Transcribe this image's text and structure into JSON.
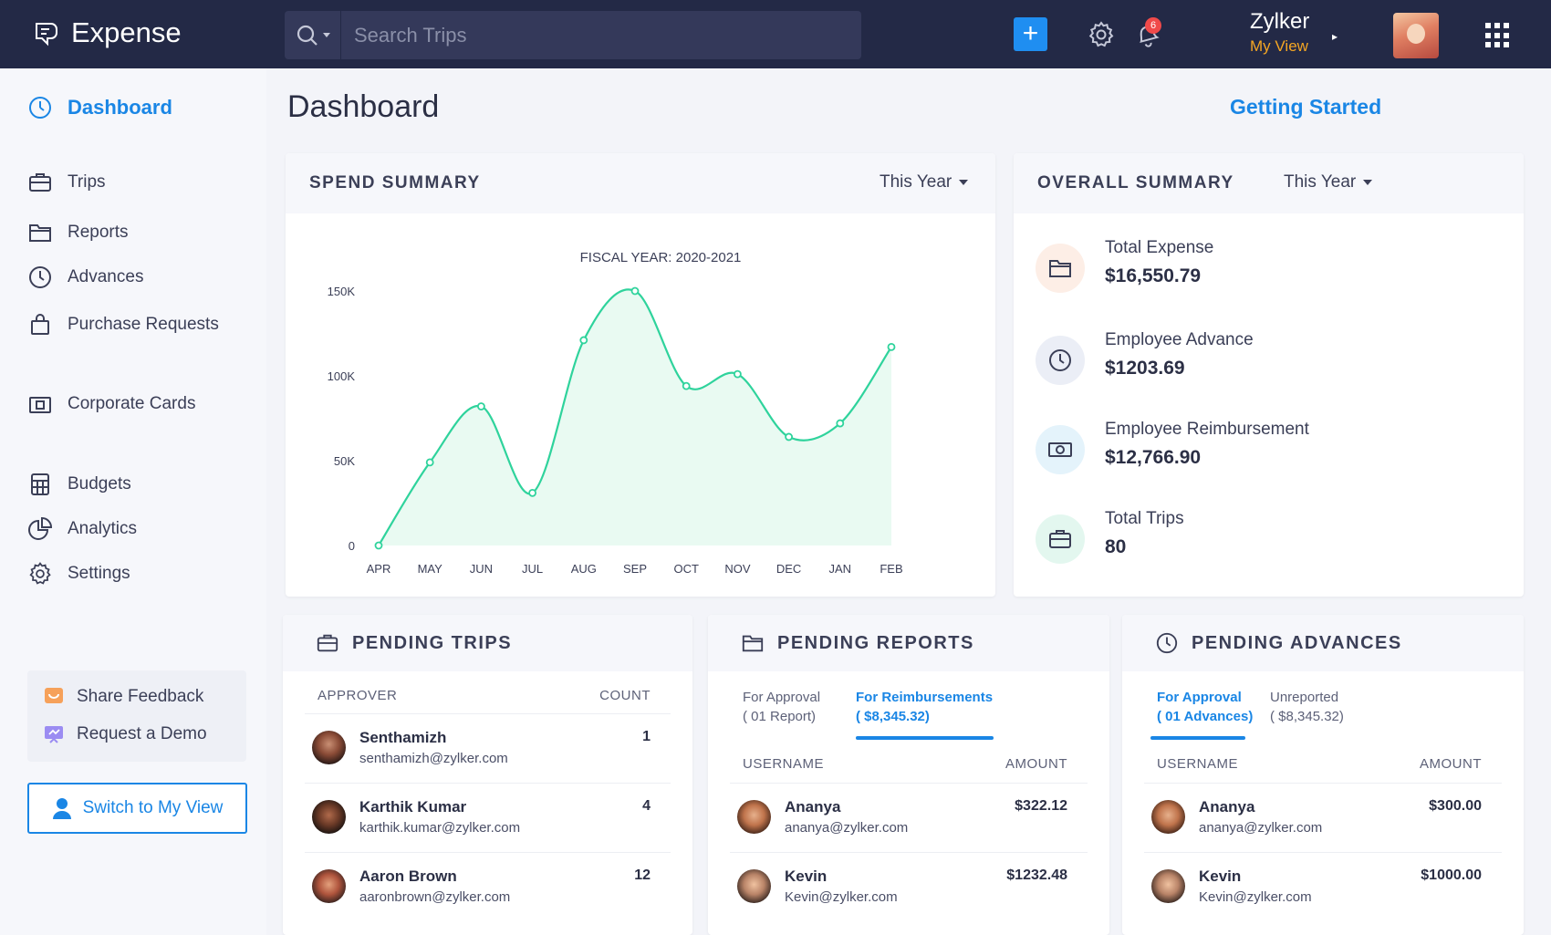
{
  "app": {
    "name": "Expense",
    "search_placeholder": "Search Trips",
    "add_label": "+",
    "notification_count": "6",
    "org_name": "Zylker",
    "view_label": "My View"
  },
  "sidebar": {
    "items": [
      {
        "label": "Dashboard",
        "icon": "dashboard-icon"
      },
      {
        "label": "Trips",
        "icon": "briefcase-icon"
      },
      {
        "label": "Reports",
        "icon": "folder-icon"
      },
      {
        "label": "Advances",
        "icon": "clock-icon"
      },
      {
        "label": "Purchase Requests",
        "icon": "bag-icon"
      },
      {
        "label": "Corporate Cards",
        "icon": "card-icon"
      },
      {
        "label": "Budgets",
        "icon": "calculator-icon"
      },
      {
        "label": "Analytics",
        "icon": "pie-chart-icon"
      },
      {
        "label": "Settings",
        "icon": "gear-icon"
      }
    ],
    "share_feedback": "Share Feedback",
    "request_demo": "Request a Demo",
    "switch_view": "Switch to My View"
  },
  "main": {
    "title": "Dashboard",
    "getting_started": "Getting Started"
  },
  "spend_summary": {
    "title": "SPEND SUMMARY",
    "period": "This Year"
  },
  "chart_data": {
    "type": "line",
    "title": "FISCAL YEAR: 2020-2021",
    "categories": [
      "APR",
      "MAY",
      "JUN",
      "JUL",
      "AUG",
      "SEP",
      "OCT",
      "NOV",
      "DEC",
      "JAN",
      "FEB"
    ],
    "values": [
      0,
      49000,
      82000,
      31000,
      121000,
      150000,
      94000,
      101000,
      64000,
      72000,
      117000
    ],
    "y_ticks": [
      0,
      50000,
      100000,
      150000
    ],
    "y_tick_labels": [
      "0",
      "50K",
      "100K",
      "150K"
    ],
    "ylim": [
      0,
      150000
    ],
    "grid": false,
    "line_color": "#2fd39c",
    "fill_color": "#e9faf2"
  },
  "overall_summary": {
    "title": "OVERALL SUMMARY",
    "period": "This Year",
    "items": [
      {
        "label": "Total Expense",
        "value": "$16,550.79",
        "icon": "folder-icon",
        "color": "#fdeee6"
      },
      {
        "label": "Employee Advance",
        "value": "$1203.69",
        "icon": "clock-icon",
        "color": "#ebeef6"
      },
      {
        "label": "Employee Reimbursement",
        "value": "$12,766.90",
        "icon": "money-icon",
        "color": "#e4f3fb"
      },
      {
        "label": "Total Trips",
        "value": "80",
        "icon": "briefcase-icon",
        "color": "#e3f7ef"
      }
    ]
  },
  "pending_trips": {
    "title": "PENDING TRIPS",
    "col_left": "APPROVER",
    "col_right": "COUNT",
    "rows": [
      {
        "name": "Senthamizh",
        "email": "senthamizh@zylker.com",
        "value": "1"
      },
      {
        "name": "Karthik Kumar",
        "email": "karthik.kumar@zylker.com",
        "value": "4"
      },
      {
        "name": "Aaron Brown",
        "email": "aaronbrown@zylker.com",
        "value": "12"
      }
    ]
  },
  "pending_reports": {
    "title": "PENDING REPORTS",
    "tab1_line1": "For Approval",
    "tab1_line2": "( 01 Report)",
    "tab2_line1": "For Reimbursements",
    "tab2_line2": "( $8,345.32)",
    "col_left": "USERNAME",
    "col_right": "AMOUNT",
    "rows": [
      {
        "name": "Ananya",
        "email": "ananya@zylker.com",
        "value": "$322.12"
      },
      {
        "name": "Kevin",
        "email": "Kevin@zylker.com",
        "value": "$1232.48"
      }
    ]
  },
  "pending_advances": {
    "title": "PENDING ADVANCES",
    "tab1_line1": "For Approval",
    "tab1_line2": "( 01 Advances)",
    "tab2_line1": "Unreported",
    "tab2_line2": "( $8,345.32)",
    "col_left": "USERNAME",
    "col_right": "AMOUNT",
    "rows": [
      {
        "name": "Ananya",
        "email": "ananya@zylker.com",
        "value": "$300.00"
      },
      {
        "name": "Kevin",
        "email": "Kevin@zylker.com",
        "value": "$1000.00"
      }
    ]
  }
}
